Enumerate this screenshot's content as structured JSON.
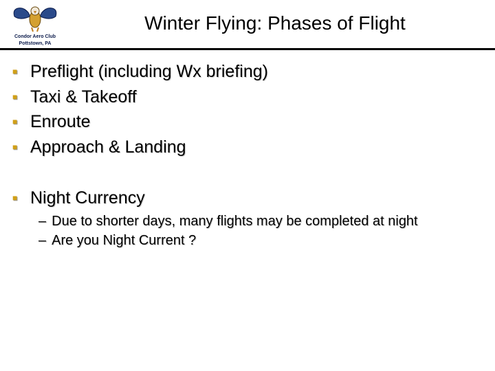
{
  "logo": {
    "line1": "Condor Aero Club",
    "line2": "Pottstown, PA",
    "wing_color": "#2a4a8a",
    "wing_stroke": "#0a1a4a",
    "body_color": "#d4a030",
    "head_color": "#f0e8d8"
  },
  "title": "Winter Flying:  Phases of Flight",
  "title_fontsize": 28,
  "rule_color": "#000000",
  "bullet_color": "#d1a018",
  "bullets_group1": [
    "Preflight (including Wx briefing)",
    "Taxi & Takeoff",
    "Enroute",
    "Approach & Landing"
  ],
  "bullets_group2": [
    {
      "text": "Night Currency",
      "subs": [
        "Due to shorter days, many flights may be completed at night",
        "Are you Night Current ?"
      ]
    }
  ],
  "body_fontsize": 25,
  "sub_fontsize": 20,
  "text_color": "#000000",
  "background_color": "#ffffff"
}
